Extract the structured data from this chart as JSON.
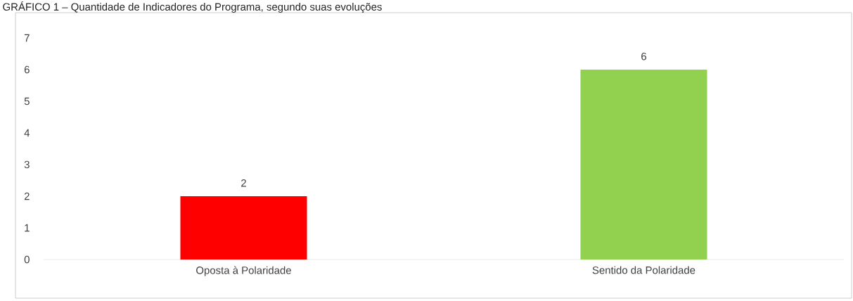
{
  "chart_data": {
    "type": "bar",
    "title": "GRÁFICO 1 – Quantidade de Indicadores do Programa, segundo suas evoluções",
    "categories": [
      "Oposta à Polaridade",
      "Sentido da Polaridade"
    ],
    "values": [
      2,
      6
    ],
    "colors": [
      "#ff0000",
      "#92d050"
    ],
    "ylim": [
      0,
      7
    ],
    "yticks": [
      0,
      1,
      2,
      3,
      4,
      5,
      6,
      7
    ],
    "data_labels": true,
    "grid": false,
    "legend": false
  }
}
